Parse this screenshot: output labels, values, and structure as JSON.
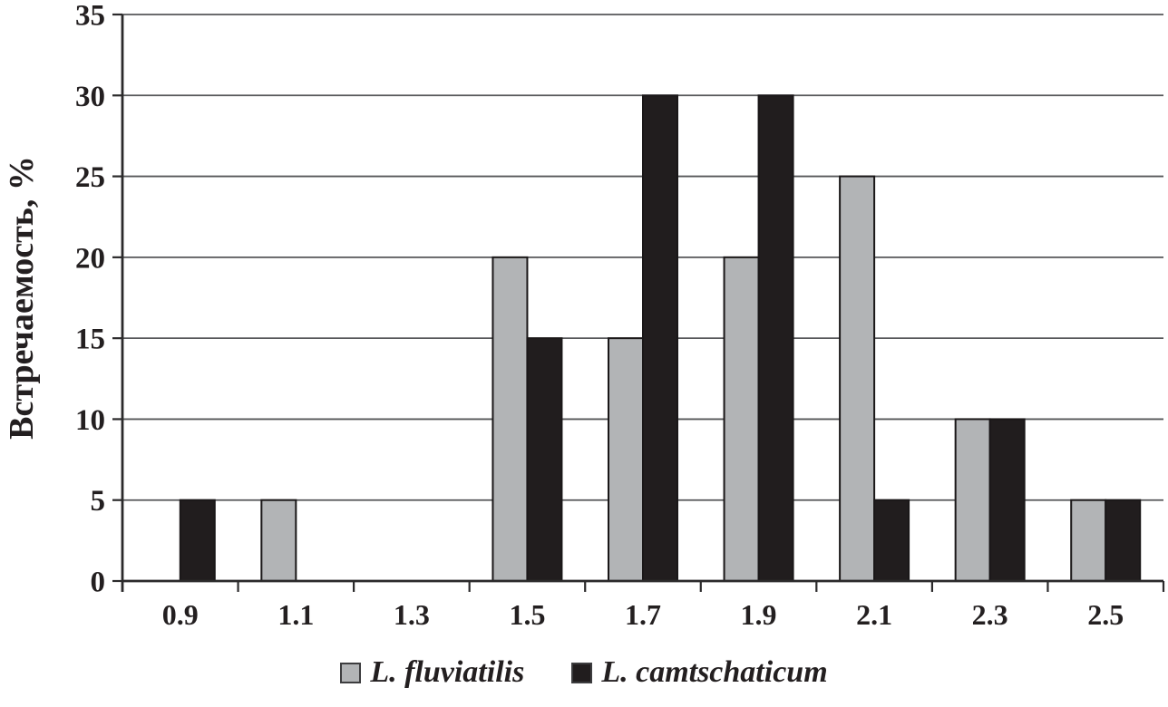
{
  "chart_data": {
    "type": "bar",
    "title": "",
    "xlabel": "",
    "ylabel": "Встречаемость, %",
    "categories": [
      "0.9",
      "1.1",
      "1.3",
      "1.5",
      "1.7",
      "1.9",
      "2.1",
      "2.3",
      "2.5"
    ],
    "series": [
      {
        "name": "L. fluviatilis",
        "color": "#b2b4b6",
        "values": [
          0,
          5,
          0,
          20,
          15,
          20,
          25,
          10,
          5
        ]
      },
      {
        "name": "L. camtschaticum",
        "color": "#211d1e",
        "values": [
          5,
          0,
          0,
          15,
          30,
          30,
          5,
          10,
          5
        ]
      }
    ],
    "ylim": [
      0,
      35
    ],
    "ytick_step": 5,
    "yticks": [
      0,
      5,
      10,
      15,
      20,
      25,
      30,
      35
    ],
    "grid": "horizontal",
    "legend_position": "bottom",
    "colors": {
      "background": "#ffffff",
      "gridline": "#565759",
      "axis": "#2b2a2b",
      "bar_border": "#1a1718",
      "text": "#231f20"
    }
  }
}
